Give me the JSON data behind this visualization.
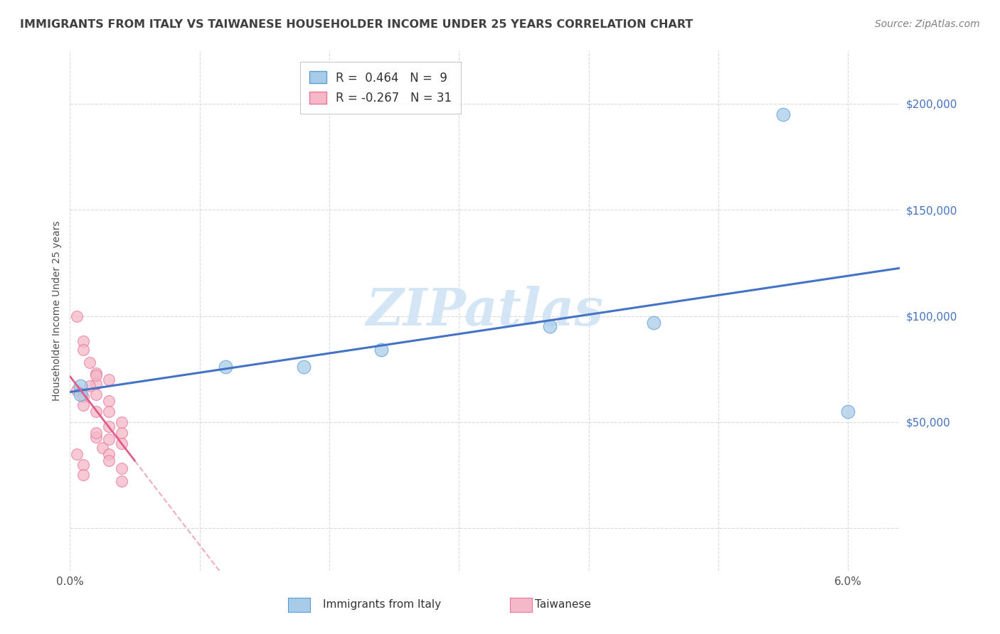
{
  "title": "IMMIGRANTS FROM ITALY VS TAIWANESE HOUSEHOLDER INCOME UNDER 25 YEARS CORRELATION CHART",
  "source": "Source: ZipAtlas.com",
  "ylabel": "Householder Income Under 25 years",
  "legend_bottom_left": "Immigrants from Italy",
  "legend_bottom_right": "Taiwanese",
  "xlim": [
    0.0,
    0.064
  ],
  "ylim": [
    -20000,
    225000
  ],
  "yticks": [
    0,
    50000,
    100000,
    150000,
    200000
  ],
  "ytick_labels": [
    "",
    "$50,000",
    "$100,000",
    "$150,000",
    "$200,000"
  ],
  "xticks": [
    0.0,
    0.01,
    0.02,
    0.03,
    0.04,
    0.05,
    0.06
  ],
  "xtick_labels_show": [
    "0.0%",
    "6.0%"
  ],
  "blue_R": 0.464,
  "blue_N": 9,
  "pink_R": -0.267,
  "pink_N": 31,
  "blue_color": "#a8cce8",
  "pink_color": "#f4b8c8",
  "blue_edge_color": "#5b9bd5",
  "pink_edge_color": "#e8749a",
  "blue_line_color": "#4472c4",
  "pink_line_color": "#e05c8a",
  "blue_scatter_x": [
    0.0008,
    0.012,
    0.018,
    0.024,
    0.037,
    0.045,
    0.0008,
    0.055,
    0.06
  ],
  "blue_scatter_y": [
    67000,
    76000,
    76000,
    84000,
    95000,
    97000,
    63000,
    195000,
    55000
  ],
  "pink_scatter_x": [
    0.0005,
    0.001,
    0.001,
    0.0015,
    0.002,
    0.002,
    0.002,
    0.002,
    0.003,
    0.003,
    0.003,
    0.003,
    0.004,
    0.004,
    0.004,
    0.0005,
    0.001,
    0.001,
    0.0015,
    0.002,
    0.0025,
    0.003,
    0.0005,
    0.001,
    0.001,
    0.002,
    0.002,
    0.003,
    0.003,
    0.004,
    0.004
  ],
  "pink_scatter_y": [
    100000,
    88000,
    84000,
    78000,
    73000,
    68000,
    63000,
    72000,
    60000,
    55000,
    48000,
    70000,
    45000,
    40000,
    50000,
    65000,
    62000,
    58000,
    67000,
    43000,
    38000,
    35000,
    35000,
    30000,
    25000,
    55000,
    45000,
    42000,
    32000,
    28000,
    22000
  ],
  "watermark_text": "ZIPatlas",
  "watermark_color": "#d0e4f5",
  "background_color": "#ffffff",
  "grid_color": "#d9d9d9",
  "title_color": "#404040",
  "source_color": "#808080",
  "ylabel_color": "#505050",
  "ytick_color": "#4472c4",
  "xtick_color": "#505050"
}
